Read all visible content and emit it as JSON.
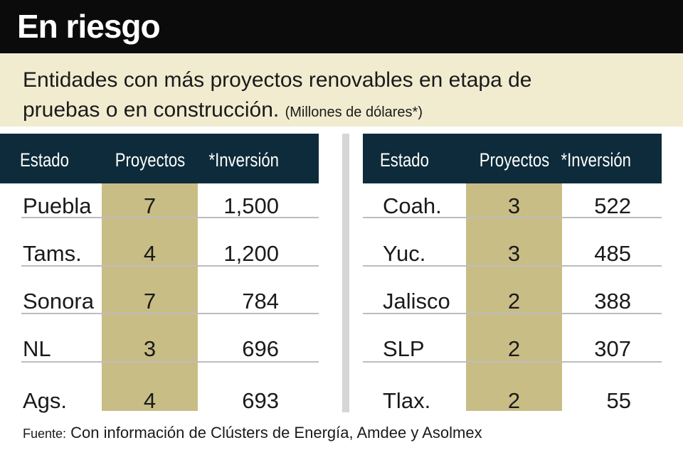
{
  "header": {
    "title": "En riesgo",
    "subtitle": "Entidades con más proyectos renovables en etapa de pruebas o en construcción.",
    "subtitle_note": "(Millones de dólares*)"
  },
  "tables": [
    {
      "columns": [
        "Estado",
        "Proyectos",
        "*Inversión"
      ],
      "rows": [
        [
          "Puebla",
          "7",
          "1,500"
        ],
        [
          "Tams.",
          "4",
          "1,200"
        ],
        [
          "Sonora",
          "7",
          "784"
        ],
        [
          "NL",
          "3",
          "696"
        ],
        [
          "Ags.",
          "4",
          "693"
        ]
      ]
    },
    {
      "columns": [
        "Estado",
        "Proyectos",
        "*Inversión"
      ],
      "rows": [
        [
          "Coah.",
          "3",
          "522"
        ],
        [
          "Yuc.",
          "3",
          "485"
        ],
        [
          "Jalisco",
          "2",
          "388"
        ],
        [
          "SLP",
          "2",
          "307"
        ],
        [
          "Tlax.",
          "2",
          "55"
        ]
      ]
    }
  ],
  "footer": {
    "label": "Fuente:",
    "text": "Con información de Clústers de Energía, Amdee y Asolmex"
  }
}
